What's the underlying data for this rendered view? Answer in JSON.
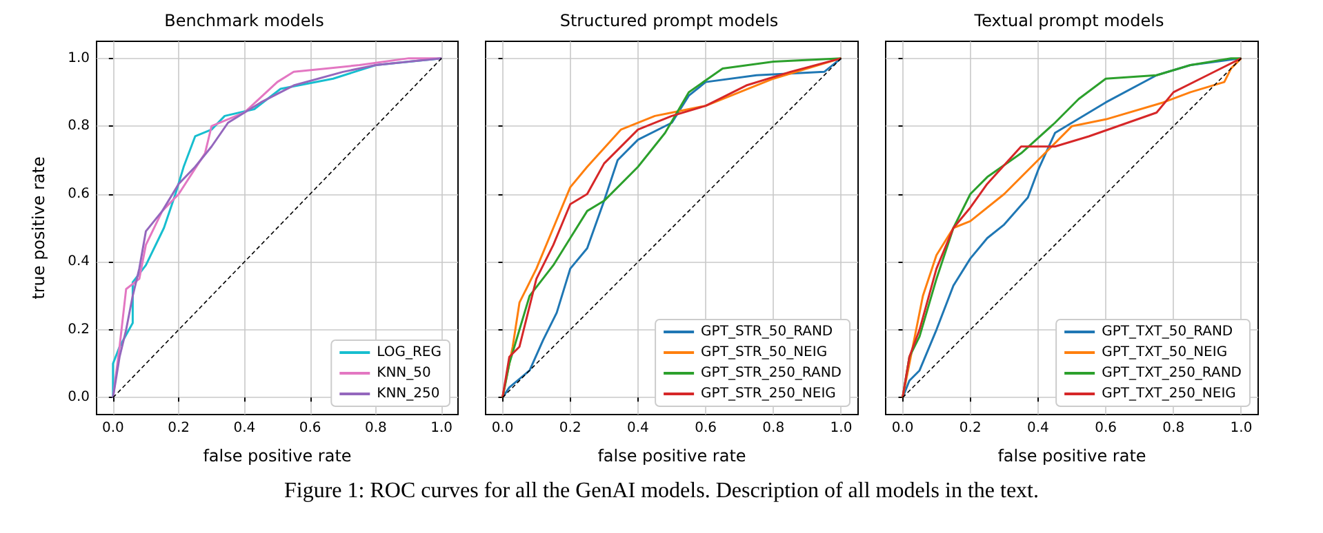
{
  "chart_data": [
    {
      "type": "line",
      "title": "Benchmark models",
      "xlabel": "false positive rate",
      "ylabel": "true positive rate",
      "xlim": [
        -0.05,
        1.05
      ],
      "ylim": [
        -0.05,
        1.05
      ],
      "xticks": [
        {
          "value": 0,
          "label": "0.0"
        },
        {
          "value": 0.2,
          "label": "0.2"
        },
        {
          "value": 0.4,
          "label": "0.4"
        },
        {
          "value": 0.6,
          "label": "0.6"
        },
        {
          "value": 0.8,
          "label": "0.8"
        },
        {
          "value": 1,
          "label": "1.0"
        }
      ],
      "yticks": [
        {
          "value": 0,
          "label": "0.0"
        },
        {
          "value": 0.2,
          "label": "0.2"
        },
        {
          "value": 0.4,
          "label": "0.4"
        },
        {
          "value": 0.6,
          "label": "0.6"
        },
        {
          "value": 0.8,
          "label": "0.8"
        },
        {
          "value": 1,
          "label": "1.0"
        }
      ],
      "grid": true,
      "legend": "bottom right",
      "marker": "none",
      "line_style": "solid",
      "annotations": [
        "Figure 1: ROC curves for all the GenAI models. Description of all models in the text."
      ],
      "series": [
        {
          "name": "LOG_REG",
          "color": "#17becf",
          "x": [
            0,
            0,
            0.02,
            0.06,
            0.06,
            0.1,
            0.155,
            0.19,
            0.215,
            0.25,
            0.3,
            0.34,
            0.43,
            0.51,
            0.67,
            0.8,
            1
          ],
          "values": [
            0,
            0.1,
            0.15,
            0.22,
            0.34,
            0.39,
            0.5,
            0.6,
            0.68,
            0.77,
            0.79,
            0.83,
            0.85,
            0.91,
            0.94,
            0.98,
            1
          ]
        },
        {
          "name": "KNN_50",
          "color": "#e377c2",
          "x": [
            0,
            0.02,
            0.04,
            0.08,
            0.1,
            0.15,
            0.2,
            0.28,
            0.3,
            0.4,
            0.5,
            0.55,
            0.65,
            0.75,
            0.9,
            1
          ],
          "values": [
            0,
            0.15,
            0.32,
            0.35,
            0.45,
            0.55,
            0.6,
            0.72,
            0.8,
            0.84,
            0.93,
            0.96,
            0.97,
            0.98,
            1,
            1
          ]
        },
        {
          "name": "KNN_250",
          "color": "#9467bd",
          "x": [
            0,
            0.02,
            0.04,
            0.06,
            0.08,
            0.1,
            0.15,
            0.2,
            0.25,
            0.3,
            0.35,
            0.45,
            0.55,
            0.7,
            0.8,
            0.9,
            1
          ],
          "values": [
            0,
            0.12,
            0.2,
            0.3,
            0.38,
            0.49,
            0.55,
            0.63,
            0.68,
            0.74,
            0.81,
            0.87,
            0.92,
            0.96,
            0.98,
            0.99,
            1
          ]
        },
        {
          "type": "line",
          "color": "#000000",
          "line_style": "dashed",
          "x": [
            0,
            1
          ],
          "values": [
            0,
            1
          ]
        }
      ]
    },
    {
      "type": "line",
      "title": "Structured prompt models",
      "xlabel": "false positive rate",
      "xlim": [
        -0.05,
        1.05
      ],
      "ylim": [
        -0.05,
        1.05
      ],
      "tick_labels": "x",
      "xticks": [
        {
          "value": 0,
          "label": "0.0"
        },
        {
          "value": 0.2,
          "label": "0.2"
        },
        {
          "value": 0.4,
          "label": "0.4"
        },
        {
          "value": 0.6,
          "label": "0.6"
        },
        {
          "value": 0.8,
          "label": "0.8"
        },
        {
          "value": 1,
          "label": "1.0"
        }
      ],
      "yticks": [
        0,
        0.2,
        0.4,
        0.6,
        0.8,
        1
      ],
      "grid": true,
      "legend": "bottom right",
      "marker": "none",
      "line_style": "solid",
      "series": [
        {
          "name": "GPT_STR_50_RAND",
          "color": "#1f77b4",
          "x": [
            0,
            0.02,
            0.08,
            0.12,
            0.16,
            0.2,
            0.25,
            0.3,
            0.34,
            0.4,
            0.5,
            0.55,
            0.6,
            0.75,
            0.95,
            1
          ],
          "values": [
            0,
            0.03,
            0.08,
            0.17,
            0.25,
            0.38,
            0.44,
            0.58,
            0.7,
            0.76,
            0.81,
            0.89,
            0.93,
            0.95,
            0.96,
            1
          ]
        },
        {
          "name": "GPT_STR_50_NEIG",
          "color": "#ff7f0e",
          "x": [
            0,
            0.03,
            0.05,
            0.1,
            0.15,
            0.2,
            0.25,
            0.35,
            0.45,
            0.5,
            0.6,
            0.8,
            1
          ],
          "values": [
            0,
            0.15,
            0.28,
            0.38,
            0.5,
            0.62,
            0.68,
            0.79,
            0.83,
            0.84,
            0.86,
            0.94,
            1
          ]
        },
        {
          "name": "GPT_STR_250_RAND",
          "color": "#2ca02c",
          "x": [
            0,
            0.02,
            0.08,
            0.15,
            0.2,
            0.25,
            0.3,
            0.4,
            0.48,
            0.55,
            0.65,
            0.8,
            1
          ],
          "values": [
            0,
            0.1,
            0.3,
            0.39,
            0.47,
            0.55,
            0.58,
            0.68,
            0.78,
            0.9,
            0.97,
            0.99,
            1
          ]
        },
        {
          "name": "GPT_STR_250_NEIG",
          "color": "#d62728",
          "x": [
            0,
            0.02,
            0.05,
            0.1,
            0.15,
            0.2,
            0.25,
            0.3,
            0.4,
            0.5,
            0.6,
            0.72,
            0.85,
            1
          ],
          "values": [
            0,
            0.12,
            0.15,
            0.35,
            0.45,
            0.57,
            0.6,
            0.69,
            0.79,
            0.83,
            0.86,
            0.92,
            0.96,
            1
          ]
        },
        {
          "type": "line",
          "color": "#000000",
          "line_style": "dashed",
          "x": [
            0,
            1
          ],
          "values": [
            0,
            1
          ]
        }
      ]
    },
    {
      "type": "line",
      "title": "Textual prompt models",
      "xlabel": "false positive rate",
      "xlim": [
        -0.05,
        1.05
      ],
      "ylim": [
        -0.05,
        1.05
      ],
      "tick_labels": "x",
      "xticks": [
        {
          "value": 0,
          "label": "0.0"
        },
        {
          "value": 0.2,
          "label": "0.2"
        },
        {
          "value": 0.4,
          "label": "0.4"
        },
        {
          "value": 0.6,
          "label": "0.6"
        },
        {
          "value": 0.8,
          "label": "0.8"
        },
        {
          "value": 1,
          "label": "1.0"
        }
      ],
      "yticks": [
        0,
        0.2,
        0.4,
        0.6,
        0.8,
        1
      ],
      "grid": true,
      "legend": "bottom right",
      "marker": "none",
      "line_style": "solid",
      "series": [
        {
          "name": "GPT_TXT_50_RAND",
          "color": "#1f77b4",
          "x": [
            0,
            0.02,
            0.05,
            0.1,
            0.15,
            0.2,
            0.25,
            0.3,
            0.37,
            0.4,
            0.45,
            0.55,
            0.6,
            0.75,
            0.85,
            1
          ],
          "values": [
            0,
            0.05,
            0.08,
            0.2,
            0.33,
            0.41,
            0.47,
            0.51,
            0.59,
            0.67,
            0.78,
            0.84,
            0.87,
            0.95,
            0.98,
            1
          ]
        },
        {
          "name": "GPT_TXT_50_NEIG",
          "color": "#ff7f0e",
          "x": [
            0,
            0.02,
            0.06,
            0.1,
            0.15,
            0.2,
            0.3,
            0.4,
            0.5,
            0.6,
            0.77,
            0.85,
            0.95,
            0.97,
            1
          ],
          "values": [
            0,
            0.1,
            0.3,
            0.42,
            0.5,
            0.52,
            0.6,
            0.7,
            0.8,
            0.82,
            0.87,
            0.9,
            0.93,
            0.97,
            1
          ]
        },
        {
          "name": "GPT_TXT_250_RAND",
          "color": "#2ca02c",
          "x": [
            0,
            0.02,
            0.05,
            0.1,
            0.15,
            0.2,
            0.25,
            0.35,
            0.45,
            0.52,
            0.6,
            0.75,
            0.85,
            0.97,
            1
          ],
          "values": [
            0,
            0.12,
            0.18,
            0.35,
            0.5,
            0.6,
            0.65,
            0.72,
            0.81,
            0.88,
            0.94,
            0.95,
            0.98,
            1,
            1
          ]
        },
        {
          "name": "GPT_TXT_250_NEIG",
          "color": "#d62728",
          "x": [
            0,
            0.02,
            0.05,
            0.1,
            0.15,
            0.2,
            0.25,
            0.35,
            0.45,
            0.55,
            0.75,
            0.8,
            0.9,
            1
          ],
          "values": [
            0,
            0.12,
            0.2,
            0.38,
            0.5,
            0.56,
            0.63,
            0.74,
            0.74,
            0.77,
            0.84,
            0.9,
            0.95,
            1
          ]
        },
        {
          "type": "line",
          "color": "#000000",
          "line_style": "dashed",
          "x": [
            0,
            1
          ],
          "values": [
            0,
            1
          ]
        }
      ]
    }
  ]
}
